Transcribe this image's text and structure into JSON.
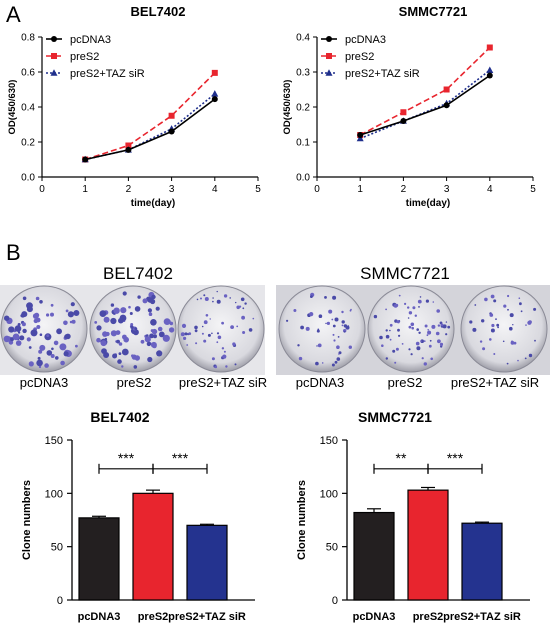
{
  "panel_labels": {
    "a": "A",
    "b": "B"
  },
  "plates": {
    "left_title": "BEL7402",
    "right_title": "SMMC7721",
    "left_labels": [
      "pcDNA3",
      "preS2",
      "preS2+TAZ siR"
    ],
    "right_labels": [
      "pcDNA3",
      "preS2",
      "preS2+TAZ siR"
    ]
  },
  "chart_data": [
    {
      "type": "line",
      "title": "BEL7402",
      "xlabel": "time(day)",
      "ylabel": "OD(450/630)",
      "x": [
        1,
        2,
        3,
        4
      ],
      "xlim": [
        0,
        5
      ],
      "ylim": [
        0,
        0.8
      ],
      "xticks": [
        "0",
        "1",
        "2",
        "3",
        "4",
        "5"
      ],
      "yticks": [
        "0.0",
        "0.2",
        "0.4",
        "0.6",
        "0.8"
      ],
      "legend_position": "top-left",
      "series": [
        {
          "name": "pcDNA3",
          "values": [
            0.1,
            0.155,
            0.26,
            0.445
          ],
          "color": "#000000",
          "marker": "circle",
          "dash": "solid"
        },
        {
          "name": "preS2",
          "values": [
            0.1,
            0.18,
            0.35,
            0.595
          ],
          "color": "#e8252e",
          "marker": "square",
          "dash": "dashed"
        },
        {
          "name": "preS2+TAZ siR",
          "values": [
            0.1,
            0.155,
            0.275,
            0.475
          ],
          "color": "#1f2f8c",
          "marker": "triangle",
          "dash": "dotted"
        }
      ]
    },
    {
      "type": "line",
      "title": "SMMC7721",
      "xlabel": "time(day)",
      "ylabel": "OD(450/630)",
      "x": [
        1,
        2,
        3,
        4
      ],
      "xlim": [
        0,
        5
      ],
      "ylim": [
        0,
        0.4
      ],
      "xticks": [
        "0",
        "1",
        "2",
        "3",
        "4",
        "5"
      ],
      "yticks": [
        "0.0",
        "0.1",
        "0.2",
        "0.3",
        "0.4"
      ],
      "legend_position": "top-left",
      "series": [
        {
          "name": "pcDNA3",
          "values": [
            0.12,
            0.16,
            0.205,
            0.29
          ],
          "color": "#000000",
          "marker": "circle",
          "dash": "solid"
        },
        {
          "name": "preS2",
          "values": [
            0.12,
            0.185,
            0.25,
            0.37
          ],
          "color": "#e8252e",
          "marker": "square",
          "dash": "dashed"
        },
        {
          "name": "preS2+TAZ siR",
          "values": [
            0.11,
            0.16,
            0.21,
            0.305
          ],
          "color": "#1f2f8c",
          "marker": "triangle",
          "dash": "dotted"
        }
      ]
    },
    {
      "type": "bar",
      "title": "BEL7402",
      "xlabel": "",
      "ylabel": "Clone numbers",
      "categories": [
        "pcDNA3",
        "preS2",
        "preS2+TAZ siR"
      ],
      "values": [
        77,
        100,
        70
      ],
      "errors": [
        1.5,
        3,
        1
      ],
      "colors": [
        "#231f20",
        "#e8252e",
        "#24338f"
      ],
      "ylim": [
        0,
        150
      ],
      "yticks": [
        "0",
        "50",
        "100",
        "150"
      ],
      "significance": [
        {
          "from": 0,
          "to": 1,
          "label": "***"
        },
        {
          "from": 1,
          "to": 2,
          "label": "***"
        }
      ]
    },
    {
      "type": "bar",
      "title": "SMMC7721",
      "xlabel": "",
      "ylabel": "Clone numbers",
      "categories": [
        "pcDNA3",
        "preS2",
        "preS2+TAZ siR"
      ],
      "values": [
        82,
        103,
        72
      ],
      "errors": [
        3.5,
        2.5,
        1
      ],
      "colors": [
        "#231f20",
        "#e8252e",
        "#24338f"
      ],
      "ylim": [
        0,
        150
      ],
      "yticks": [
        "0",
        "50",
        "100",
        "150"
      ],
      "significance": [
        {
          "from": 0,
          "to": 1,
          "label": "**"
        },
        {
          "from": 1,
          "to": 2,
          "label": "***"
        }
      ]
    }
  ]
}
